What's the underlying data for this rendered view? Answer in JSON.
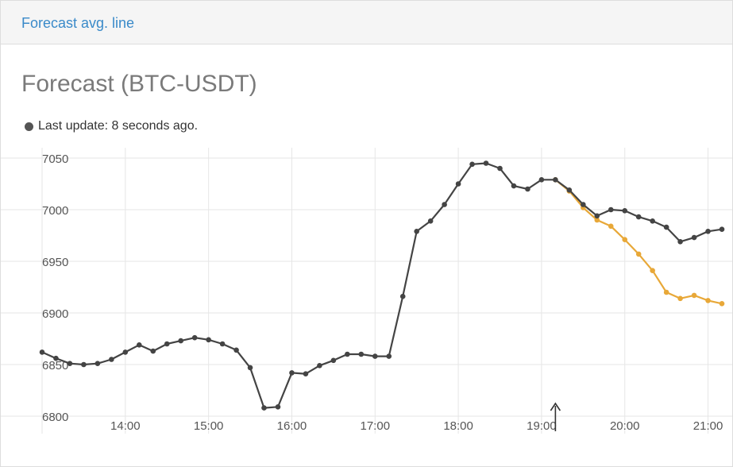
{
  "header": {
    "tab_label": "Forecast avg. line"
  },
  "page": {
    "title": "Forecast (BTC-USDT)",
    "status_text": "Last update: 8 seconds ago."
  },
  "colors": {
    "actual": "#444444",
    "forecast": "#e8a838",
    "grid": "#e6e6e6",
    "tick_text": "#555555",
    "link": "#3a8ac9"
  },
  "icons": {
    "status": "dot-icon",
    "marker": "arrow-up-icon"
  },
  "chart_data": {
    "type": "line",
    "title": "Forecast (BTC-USDT)",
    "xlabel": "",
    "ylabel": "",
    "xlim": [
      "13:00",
      "21:18"
    ],
    "ylim": [
      6790,
      7062
    ],
    "y_ticks": [
      6800,
      6850,
      6900,
      6950,
      7000,
      7050
    ],
    "x_ticks": [
      "14:00",
      "15:00",
      "16:00",
      "17:00",
      "18:00",
      "19:00",
      "20:00",
      "21:00"
    ],
    "grid": true,
    "legend": "none",
    "marker_time": "19:10",
    "series": [
      {
        "key": "actual",
        "x": [
          "13:00",
          "13:10",
          "13:20",
          "13:30",
          "13:40",
          "13:50",
          "14:00",
          "14:10",
          "14:20",
          "14:30",
          "14:40",
          "14:50",
          "15:00",
          "15:10",
          "15:20",
          "15:30",
          "15:40",
          "15:50",
          "16:00",
          "16:10",
          "16:20",
          "16:30",
          "16:40",
          "16:50",
          "17:00",
          "17:10",
          "17:20",
          "17:30",
          "17:40",
          "17:50",
          "18:00",
          "18:10",
          "18:20",
          "18:30",
          "18:40",
          "18:50",
          "19:00",
          "19:10",
          "19:20",
          "19:30",
          "19:40",
          "19:50",
          "20:00",
          "20:10",
          "20:20",
          "20:30",
          "20:40",
          "20:50",
          "21:00",
          "21:10"
        ],
        "values": [
          6862,
          6856,
          6851,
          6850,
          6851,
          6855,
          6862,
          6869,
          6863,
          6870,
          6873,
          6876,
          6874,
          6870,
          6864,
          6847,
          6808,
          6809,
          6842,
          6841,
          6849,
          6854,
          6860,
          6860,
          6858,
          6858,
          6916,
          6979,
          6989,
          7005,
          7025,
          7044,
          7045,
          7040,
          7023,
          7020,
          7029,
          7029,
          7019,
          7005,
          6994,
          7000,
          6999,
          6993,
          6989,
          6983,
          6969,
          6973,
          6979,
          6981
        ]
      },
      {
        "key": "forecast",
        "x": [
          "19:10",
          "19:20",
          "19:30",
          "19:40",
          "19:50",
          "20:00",
          "20:10",
          "20:20",
          "20:30",
          "20:40",
          "20:50",
          "21:00",
          "21:10"
        ],
        "values": [
          7029,
          7018,
          7002,
          6990,
          6984,
          6971,
          6957,
          6941,
          6920,
          6914,
          6917,
          6912,
          6909
        ]
      }
    ]
  }
}
